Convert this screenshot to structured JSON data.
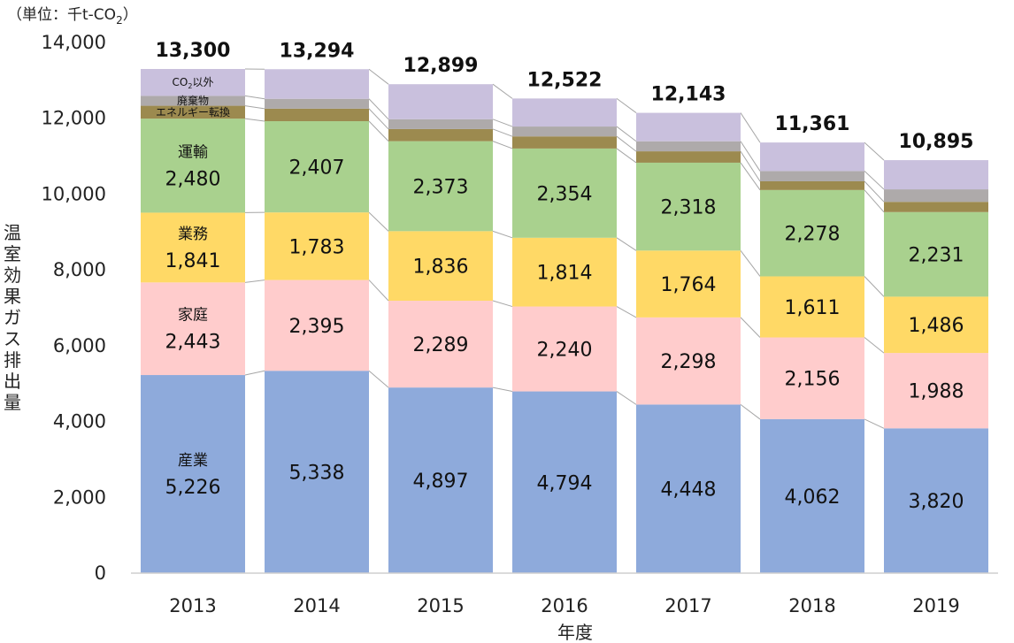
{
  "chart_data": {
    "type": "bar",
    "stacked": true,
    "unit_label": "（単位：千t-CO",
    "unit_sub": "2",
    "unit_close": "）",
    "ylabel": "温室効果ガス排出量",
    "xlabel": "年度",
    "ylim": [
      0,
      14000
    ],
    "y_ticks": [
      "0",
      "2,000",
      "4,000",
      "6,000",
      "8,000",
      "10,000",
      "12,000",
      "14,000"
    ],
    "y_tick_values": [
      0,
      2000,
      4000,
      6000,
      8000,
      10000,
      12000,
      14000
    ],
    "grid": false,
    "categories": [
      "2013",
      "2014",
      "2015",
      "2016",
      "2017",
      "2018",
      "2019"
    ],
    "totals": [
      "13,300",
      "13,294",
      "12,899",
      "12,522",
      "12,143",
      "11,361",
      "10,895"
    ],
    "series": [
      {
        "name": "産業",
        "color": "#8eaadb",
        "values": [
          5226,
          5338,
          4897,
          4794,
          4448,
          4062,
          3820
        ],
        "labels": [
          "5,226",
          "5,338",
          "4,897",
          "4,794",
          "4,448",
          "4,062",
          "3,820"
        ]
      },
      {
        "name": "家庭",
        "color": "#ffcccc",
        "values": [
          2443,
          2395,
          2289,
          2240,
          2298,
          2156,
          1988
        ],
        "labels": [
          "2,443",
          "2,395",
          "2,289",
          "2,240",
          "2,298",
          "2,156",
          "1,988"
        ]
      },
      {
        "name": "業務",
        "color": "#ffd966",
        "values": [
          1841,
          1783,
          1836,
          1814,
          1764,
          1611,
          1486
        ],
        "labels": [
          "1,841",
          "1,783",
          "1,836",
          "1,814",
          "1,764",
          "1,611",
          "1,486"
        ]
      },
      {
        "name": "運輸",
        "color": "#a9d18e",
        "values": [
          2480,
          2407,
          2373,
          2354,
          2318,
          2278,
          2231
        ],
        "labels": [
          "2,480",
          "2,407",
          "2,373",
          "2,354",
          "2,318",
          "2,278",
          "2,231"
        ]
      },
      {
        "name": "エネルギー転換",
        "color": "#9c8a4f",
        "values": [
          340,
          330,
          320,
          320,
          300,
          230,
          270
        ]
      },
      {
        "name": "廃棄物",
        "color": "#aeaaaa",
        "values": [
          260,
          260,
          260,
          260,
          265,
          270,
          330
        ]
      },
      {
        "name": "CO2以外",
        "color": "#c9c0dd",
        "name_prefix": "CO",
        "name_sub": "2",
        "name_suffix": "以外",
        "values": [
          710,
          781,
          924,
          740,
          750,
          754,
          770
        ]
      }
    ]
  }
}
